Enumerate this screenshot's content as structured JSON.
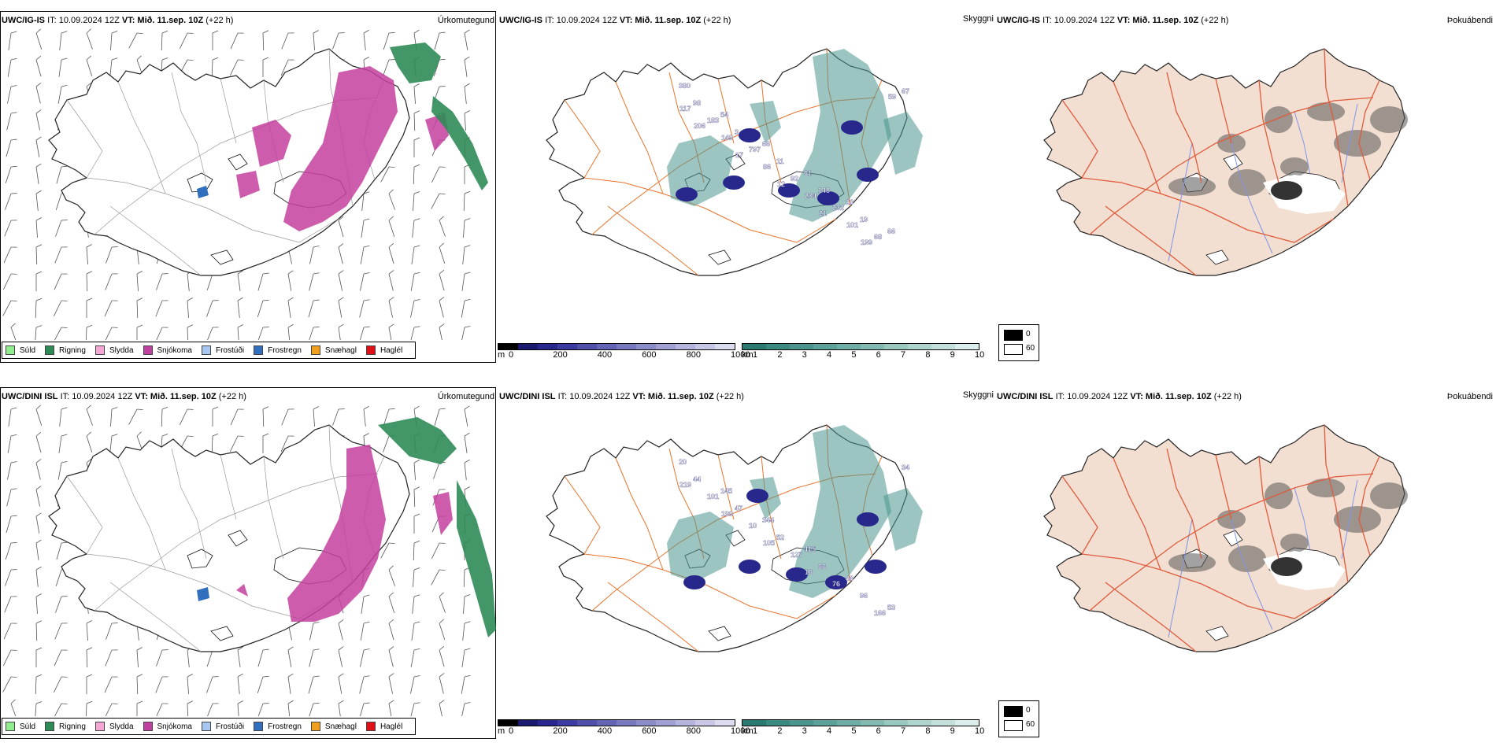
{
  "rows": [
    {
      "panels": [
        {
          "model": "UWC/IG-IS",
          "it": "IT: 10.09.2024 12Z",
          "vt": "VT: Mið. 11.sep. 10Z",
          "lead": "(+22 h)",
          "field": "Úrkomutegund"
        },
        {
          "model": "UWC/IG-IS",
          "it": "IT: 10.09.2024 12Z",
          "vt": "VT: Mið. 11.sep. 10Z",
          "lead": "(+22 h)",
          "field": "Skyggni"
        },
        {
          "model": "UWC/IG-IS",
          "it": "IT: 10.09.2024 12Z",
          "vt": "VT: Mið. 11.sep. 10Z",
          "lead": "(+22 h)",
          "field": "Þokuábendi"
        }
      ],
      "visibility_labels": [
        "380",
        "54",
        "66",
        "61",
        "23",
        "66",
        "98",
        "3",
        "11",
        "148",
        "19",
        "67",
        "183",
        "797",
        "92",
        "232",
        "68",
        "117",
        "149",
        "86",
        "234",
        "101",
        "59",
        "206",
        "17",
        "12",
        "21",
        "199"
      ]
    },
    {
      "panels": [
        {
          "model": "UWC/DINI ISL",
          "it": "IT: 10.09.2024 12Z",
          "vt": "VT: Mið. 11.sep. 10Z",
          "lead": "(+22 h)",
          "field": "Úrkomutegund"
        },
        {
          "model": "UWC/DINI ISL",
          "it": "IT: 10.09.2024 12Z",
          "vt": "VT: Mið. 11.sep. 10Z",
          "lead": "(+22 h)",
          "field": "Skyggni"
        },
        {
          "model": "UWC/DINI ISL",
          "it": "IT: 10.09.2024 12Z",
          "vt": "VT: Mið. 11.sep. 10Z",
          "lead": "(+22 h)",
          "field": "Þokuábendi"
        }
      ],
      "visibility_labels": [
        "20",
        "145",
        "344",
        "415",
        "86",
        "53",
        "44",
        "47",
        "52",
        "66",
        "96",
        "34",
        "101",
        "10",
        "127",
        "76",
        "166",
        "219",
        "199",
        "105",
        "16"
      ]
    }
  ],
  "precip_legend": [
    {
      "label": "Súld",
      "color": "#90ee90"
    },
    {
      "label": "Rigning",
      "color": "#2e8b57"
    },
    {
      "label": "Slydda",
      "color": "#f4a7d3"
    },
    {
      "label": "Snjókoma",
      "color": "#c03fa0"
    },
    {
      "label": "Frostúði",
      "color": "#a6c8f0"
    },
    {
      "label": "Frostregn",
      "color": "#2f6fbd"
    },
    {
      "label": "Snæhagl",
      "color": "#f0a020"
    },
    {
      "label": "Haglél",
      "color": "#e0101a"
    }
  ],
  "ceiling_colorbar": {
    "unit": "m",
    "ticks": [
      "0",
      "200",
      "400",
      "600",
      "800",
      "1000"
    ],
    "colors": [
      "#000000",
      "#1a1a6e",
      "#28288c",
      "#3c3ca0",
      "#5050aa",
      "#6464b4",
      "#7878be",
      "#8c8cc8",
      "#a0a0d2",
      "#b4b4dc",
      "#c8c8e6",
      "#dcdcf0"
    ]
  },
  "visibility_colorbar": {
    "unit": "km",
    "ticks": [
      "1",
      "2",
      "3",
      "4",
      "5",
      "6",
      "7",
      "8",
      "9",
      "10"
    ],
    "colors": [
      "#2a7a72",
      "#3a8a82",
      "#4a968e",
      "#5aa29a",
      "#6eaea6",
      "#82bab2",
      "#98c8c0",
      "#aed4ce",
      "#c4e0dc",
      "#dceeec"
    ]
  },
  "fog_legend": [
    {
      "label": "0",
      "color": "#000000"
    },
    {
      "label": "60",
      "color": "#ffffff"
    }
  ],
  "colors": {
    "land_fog": "#f3dfd1",
    "roads": "#e8742c",
    "roads_fog": "#e05a3c",
    "rivers": "#7f95e8",
    "snow": "#c43f9e",
    "rain": "#2e8b57"
  }
}
